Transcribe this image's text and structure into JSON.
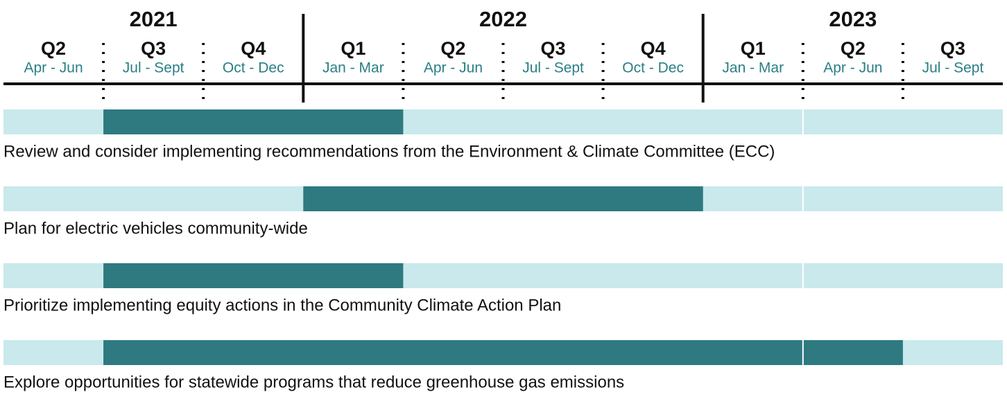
{
  "chart_data": {
    "type": "gantt",
    "years": [
      {
        "label": "2021",
        "quarters": [
          {
            "label": "Q2",
            "months": "Apr - Jun"
          },
          {
            "label": "Q3",
            "months": "Jul - Sept"
          },
          {
            "label": "Q4",
            "months": "Oct - Dec"
          }
        ]
      },
      {
        "label": "2022",
        "quarters": [
          {
            "label": "Q1",
            "months": "Jan - Mar"
          },
          {
            "label": "Q2",
            "months": "Apr - Jun"
          },
          {
            "label": "Q3",
            "months": "Jul - Sept"
          },
          {
            "label": "Q4",
            "months": "Oct - Dec"
          }
        ]
      },
      {
        "label": "2023",
        "quarters": [
          {
            "label": "Q1",
            "months": "Jan - Mar"
          },
          {
            "label": "Q2",
            "months": "Apr - Jun"
          },
          {
            "label": "Q3",
            "months": "Jul - Sept"
          }
        ]
      }
    ],
    "xlim": [
      0,
      10
    ],
    "tasks": [
      {
        "label": "Review and consider implementing recommendations from the Environment & Climate Committee (ECC)",
        "start": 1,
        "end": 4
      },
      {
        "label": "Plan for electric vehicles community-wide",
        "start": 3,
        "end": 7
      },
      {
        "label": "Prioritize implementing equity actions in the Community Climate Action Plan",
        "start": 1,
        "end": 4
      },
      {
        "label": "Explore opportunities for statewide programs that reduce greenhouse gas emissions",
        "start": 1,
        "end": 9
      }
    ],
    "background_color": "#c9e9ec",
    "bar_color": "#2e7a80",
    "months_color": "#2a7f86"
  }
}
